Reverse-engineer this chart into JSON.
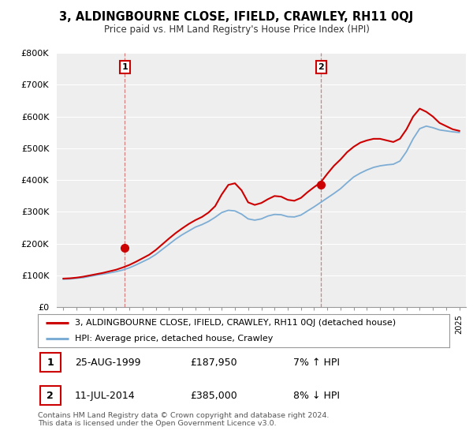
{
  "title": "3, ALDINGBOURNE CLOSE, IFIELD, CRAWLEY, RH11 0QJ",
  "subtitle": "Price paid vs. HM Land Registry's House Price Index (HPI)",
  "ylim": [
    0,
    800000
  ],
  "yticks": [
    0,
    100000,
    200000,
    300000,
    400000,
    500000,
    600000,
    700000,
    800000
  ],
  "ytick_labels": [
    "£0",
    "£100K",
    "£200K",
    "£300K",
    "£400K",
    "£500K",
    "£600K",
    "£700K",
    "£800K"
  ],
  "xlim_start": 1994.5,
  "xlim_end": 2025.5,
  "bg_color": "#ffffff",
  "plot_bg_color": "#eeeeee",
  "grid_color": "#ffffff",
  "red_color": "#cc0000",
  "blue_color": "#7dadd4",
  "transaction1": {
    "year": 1999.65,
    "price": 187950,
    "label": "1",
    "date": "25-AUG-1999",
    "price_str": "£187,950",
    "hpi_str": "7% ↑ HPI"
  },
  "transaction2": {
    "year": 2014.53,
    "price": 385000,
    "label": "2",
    "date": "11-JUL-2014",
    "price_str": "£385,000",
    "hpi_str": "8% ↓ HPI"
  },
  "legend_line1": "3, ALDINGBOURNE CLOSE, IFIELD, CRAWLEY, RH11 0QJ (detached house)",
  "legend_line2": "HPI: Average price, detached house, Crawley",
  "footer": "Contains HM Land Registry data © Crown copyright and database right 2024.\nThis data is licensed under the Open Government Licence v3.0.",
  "hpi_x": [
    1995.0,
    1995.5,
    1996.0,
    1996.5,
    1997.0,
    1997.5,
    1998.0,
    1998.5,
    1999.0,
    1999.5,
    2000.0,
    2000.5,
    2001.0,
    2001.5,
    2002.0,
    2002.5,
    2003.0,
    2003.5,
    2004.0,
    2004.5,
    2005.0,
    2005.5,
    2006.0,
    2006.5,
    2007.0,
    2007.5,
    2008.0,
    2008.5,
    2009.0,
    2009.5,
    2010.0,
    2010.5,
    2011.0,
    2011.5,
    2012.0,
    2012.5,
    2013.0,
    2013.5,
    2014.0,
    2014.5,
    2015.0,
    2015.5,
    2016.0,
    2016.5,
    2017.0,
    2017.5,
    2018.0,
    2018.5,
    2019.0,
    2019.5,
    2020.0,
    2020.5,
    2021.0,
    2021.5,
    2022.0,
    2022.5,
    2023.0,
    2023.5,
    2024.0,
    2024.5,
    2025.0
  ],
  "hpi_y": [
    88000,
    89000,
    91000,
    93000,
    97000,
    101000,
    104000,
    108000,
    112000,
    117000,
    124000,
    133000,
    143000,
    153000,
    166000,
    182000,
    198000,
    214000,
    228000,
    240000,
    252000,
    260000,
    270000,
    283000,
    298000,
    305000,
    303000,
    293000,
    278000,
    274000,
    278000,
    287000,
    292000,
    291000,
    285000,
    284000,
    290000,
    303000,
    316000,
    330000,
    344000,
    358000,
    373000,
    392000,
    410000,
    422000,
    432000,
    440000,
    445000,
    448000,
    450000,
    460000,
    490000,
    530000,
    562000,
    570000,
    565000,
    558000,
    555000,
    552000,
    550000
  ],
  "price_x": [
    1995.0,
    1995.5,
    1996.0,
    1996.5,
    1997.0,
    1997.5,
    1998.0,
    1998.5,
    1999.0,
    1999.5,
    2000.0,
    2000.5,
    2001.0,
    2001.5,
    2002.0,
    2002.5,
    2003.0,
    2003.5,
    2004.0,
    2004.5,
    2005.0,
    2005.5,
    2006.0,
    2006.5,
    2007.0,
    2007.5,
    2008.0,
    2008.5,
    2009.0,
    2009.5,
    2010.0,
    2010.5,
    2011.0,
    2011.5,
    2012.0,
    2012.5,
    2013.0,
    2013.5,
    2014.0,
    2014.5,
    2015.0,
    2015.5,
    2016.0,
    2016.5,
    2017.0,
    2017.5,
    2018.0,
    2018.5,
    2019.0,
    2019.5,
    2020.0,
    2020.5,
    2021.0,
    2021.5,
    2022.0,
    2022.5,
    2023.0,
    2023.5,
    2024.0,
    2024.5,
    2025.0
  ],
  "price_y": [
    90000,
    91000,
    93000,
    96000,
    100000,
    104000,
    108000,
    113000,
    118000,
    125000,
    133000,
    143000,
    154000,
    165000,
    180000,
    198000,
    216000,
    233000,
    248000,
    262000,
    274000,
    284000,
    298000,
    318000,
    355000,
    385000,
    390000,
    368000,
    330000,
    322000,
    328000,
    340000,
    350000,
    348000,
    338000,
    335000,
    344000,
    362000,
    378000,
    393000,
    420000,
    445000,
    465000,
    488000,
    505000,
    518000,
    525000,
    530000,
    530000,
    525000,
    520000,
    530000,
    560000,
    600000,
    625000,
    615000,
    600000,
    580000,
    570000,
    560000,
    555000
  ]
}
